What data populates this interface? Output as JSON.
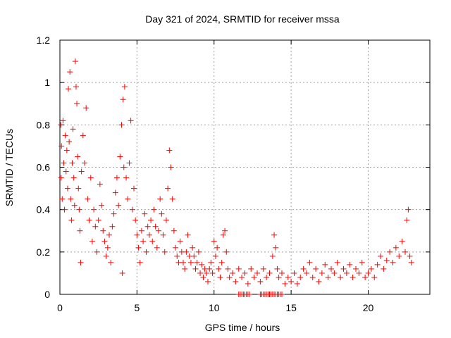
{
  "chart_data": {
    "type": "scatter",
    "title": "Day 321 of 2024, SRMTID for receiver mssa",
    "xlabel": "GPS time / hours",
    "ylabel": "SRMTID / TECUs",
    "xlim": [
      0,
      24
    ],
    "ylim": [
      0,
      1.2
    ],
    "xticks": [
      0,
      5,
      10,
      15,
      20
    ],
    "xtick_labels": [
      "0",
      "5",
      "10",
      "15",
      "20"
    ],
    "yticks": [
      0,
      0.2,
      0.4,
      0.6,
      0.8,
      1.0,
      1.2
    ],
    "ytick_labels": [
      "0",
      "0.2",
      "0.4",
      "0.6",
      "0.8",
      "1",
      "1.2"
    ],
    "grid": true,
    "marker": "+",
    "color": "#ff0000",
    "series": [
      {
        "name": "mssa",
        "points": [
          [
            0.05,
            0.8
          ],
          [
            0.08,
            0.55
          ],
          [
            0.1,
            0.7
          ],
          [
            0.15,
            0.45
          ],
          [
            0.2,
            0.82
          ],
          [
            0.25,
            0.62
          ],
          [
            0.3,
            0.4
          ],
          [
            0.35,
            0.75
          ],
          [
            0.4,
            0.58
          ],
          [
            0.45,
            0.68
          ],
          [
            0.5,
            0.5
          ],
          [
            0.55,
            0.97
          ],
          [
            0.6,
            0.72
          ],
          [
            0.65,
            1.05
          ],
          [
            0.7,
            0.45
          ],
          [
            0.75,
            0.35
          ],
          [
            0.8,
            0.62
          ],
          [
            0.85,
            0.78
          ],
          [
            0.9,
            0.55
          ],
          [
            0.95,
            0.42
          ],
          [
            1.0,
            1.1
          ],
          [
            1.05,
            0.98
          ],
          [
            1.1,
            0.9
          ],
          [
            1.15,
            0.65
          ],
          [
            1.2,
            0.5
          ],
          [
            1.25,
            0.4
          ],
          [
            1.3,
            0.3
          ],
          [
            1.35,
            0.15
          ],
          [
            1.4,
            0.58
          ],
          [
            1.5,
            0.75
          ],
          [
            1.6,
            0.62
          ],
          [
            1.7,
            0.88
          ],
          [
            1.8,
            0.45
          ],
          [
            1.9,
            0.35
          ],
          [
            2.0,
            0.55
          ],
          [
            2.1,
            0.25
          ],
          [
            2.2,
            0.4
          ],
          [
            2.3,
            0.32
          ],
          [
            2.4,
            0.2
          ],
          [
            2.5,
            0.35
          ],
          [
            2.6,
            0.52
          ],
          [
            2.7,
            0.42
          ],
          [
            2.8,
            0.3
          ],
          [
            2.9,
            0.25
          ],
          [
            3.0,
            0.18
          ],
          [
            3.1,
            0.22
          ],
          [
            3.2,
            0.28
          ],
          [
            3.3,
            0.15
          ],
          [
            3.4,
            0.32
          ],
          [
            3.5,
            0.38
          ],
          [
            3.6,
            0.48
          ],
          [
            3.7,
            0.55
          ],
          [
            3.8,
            0.42
          ],
          [
            3.9,
            0.65
          ],
          [
            4.0,
            0.8
          ],
          [
            4.05,
            0.1
          ],
          [
            4.1,
            0.92
          ],
          [
            4.15,
            0.6
          ],
          [
            4.2,
            0.98
          ],
          [
            4.3,
            0.55
          ],
          [
            4.4,
            0.45
          ],
          [
            4.5,
            0.62
          ],
          [
            4.6,
            0.82
          ],
          [
            4.7,
            0.4
          ],
          [
            4.8,
            0.5
          ],
          [
            4.9,
            0.35
          ],
          [
            5.0,
            0.28
          ],
          [
            5.1,
            0.22
          ],
          [
            5.2,
            0.15
          ],
          [
            5.3,
            0.3
          ],
          [
            5.4,
            0.25
          ],
          [
            5.5,
            0.38
          ],
          [
            5.6,
            0.2
          ],
          [
            5.7,
            0.32
          ],
          [
            5.8,
            0.28
          ],
          [
            5.9,
            0.35
          ],
          [
            6.0,
            0.25
          ],
          [
            6.1,
            0.4
          ],
          [
            6.2,
            0.32
          ],
          [
            6.3,
            0.22
          ],
          [
            6.4,
            0.3
          ],
          [
            6.5,
            0.45
          ],
          [
            6.6,
            0.38
          ],
          [
            6.7,
            0.28
          ],
          [
            6.8,
            0.2
          ],
          [
            6.9,
            0.35
          ],
          [
            7.0,
            0.5
          ],
          [
            7.1,
            0.68
          ],
          [
            7.2,
            0.6
          ],
          [
            7.3,
            0.45
          ],
          [
            7.4,
            0.3
          ],
          [
            7.5,
            0.22
          ],
          [
            7.6,
            0.18
          ],
          [
            7.7,
            0.15
          ],
          [
            7.8,
            0.25
          ],
          [
            7.9,
            0.2
          ],
          [
            8.0,
            0.15
          ],
          [
            8.1,
            0.12
          ],
          [
            8.2,
            0.2
          ],
          [
            8.3,
            0.28
          ],
          [
            8.4,
            0.18
          ],
          [
            8.5,
            0.15
          ],
          [
            8.6,
            0.22
          ],
          [
            8.7,
            0.18
          ],
          [
            8.8,
            0.12
          ],
          [
            8.9,
            0.15
          ],
          [
            9.0,
            0.2
          ],
          [
            9.1,
            0.1
          ],
          [
            9.2,
            0.14
          ],
          [
            9.3,
            0.08
          ],
          [
            9.4,
            0.12
          ],
          [
            9.5,
            0.1
          ],
          [
            9.6,
            0.06
          ],
          [
            9.7,
            0.12
          ],
          [
            9.8,
            0.15
          ],
          [
            9.9,
            0.1
          ],
          [
            10.0,
            0.25
          ],
          [
            10.1,
            0.18
          ],
          [
            10.2,
            0.22
          ],
          [
            10.3,
            0.12
          ],
          [
            10.4,
            0.08
          ],
          [
            10.5,
            0.15
          ],
          [
            10.6,
            0.28
          ],
          [
            10.7,
            0.3
          ],
          [
            10.8,
            0.2
          ],
          [
            10.9,
            0.12
          ],
          [
            11.0,
            0.08
          ],
          [
            11.2,
            0.1
          ],
          [
            11.4,
            0.06
          ],
          [
            11.6,
            0.12
          ],
          [
            11.8,
            0.08
          ],
          [
            12.0,
            0.1
          ],
          [
            12.2,
            0.05
          ],
          [
            12.4,
            0.12
          ],
          [
            12.6,
            0.08
          ],
          [
            12.8,
            0.1
          ],
          [
            13.0,
            0.06
          ],
          [
            13.2,
            0.12
          ],
          [
            13.4,
            0.08
          ],
          [
            13.6,
            0.1
          ],
          [
            13.8,
            0.18
          ],
          [
            13.9,
            0.28
          ],
          [
            14.0,
            0.22
          ],
          [
            14.1,
            0.12
          ],
          [
            14.2,
            0.08
          ],
          [
            14.4,
            0.1
          ],
          [
            14.6,
            0.05
          ],
          [
            14.8,
            0.08
          ],
          [
            15.0,
            0.06
          ],
          [
            15.2,
            0.1
          ],
          [
            15.4,
            0.05
          ],
          [
            15.6,
            0.08
          ],
          [
            15.8,
            0.12
          ],
          [
            16.0,
            0.1
          ],
          [
            16.2,
            0.15
          ],
          [
            16.4,
            0.08
          ],
          [
            16.6,
            0.12
          ],
          [
            16.8,
            0.06
          ],
          [
            17.0,
            0.1
          ],
          [
            17.2,
            0.14
          ],
          [
            17.4,
            0.08
          ],
          [
            17.6,
            0.12
          ],
          [
            17.8,
            0.1
          ],
          [
            18.0,
            0.15
          ],
          [
            18.2,
            0.08
          ],
          [
            18.4,
            0.12
          ],
          [
            18.6,
            0.1
          ],
          [
            18.8,
            0.14
          ],
          [
            19.0,
            0.08
          ],
          [
            19.2,
            0.12
          ],
          [
            19.4,
            0.1
          ],
          [
            19.6,
            0.15
          ],
          [
            19.8,
            0.08
          ],
          [
            20.0,
            0.1
          ],
          [
            20.2,
            0.12
          ],
          [
            20.4,
            0.08
          ],
          [
            20.6,
            0.14
          ],
          [
            20.8,
            0.18
          ],
          [
            21.0,
            0.12
          ],
          [
            21.2,
            0.16
          ],
          [
            21.4,
            0.2
          ],
          [
            21.6,
            0.15
          ],
          [
            21.8,
            0.22
          ],
          [
            22.0,
            0.18
          ],
          [
            22.2,
            0.25
          ],
          [
            22.4,
            0.2
          ],
          [
            22.5,
            0.35
          ],
          [
            22.6,
            0.4
          ],
          [
            22.7,
            0.18
          ],
          [
            22.8,
            0.15
          ]
        ]
      }
    ],
    "zero_points_x": [
      11.6,
      11.7,
      11.8,
      11.9,
      12.0,
      12.1,
      12.2,
      12.3,
      13.0,
      13.1,
      13.2,
      13.3,
      13.4,
      13.5,
      13.6,
      13.7,
      13.8,
      13.9,
      14.0,
      14.1,
      14.2,
      14.3,
      14.4
    ]
  }
}
